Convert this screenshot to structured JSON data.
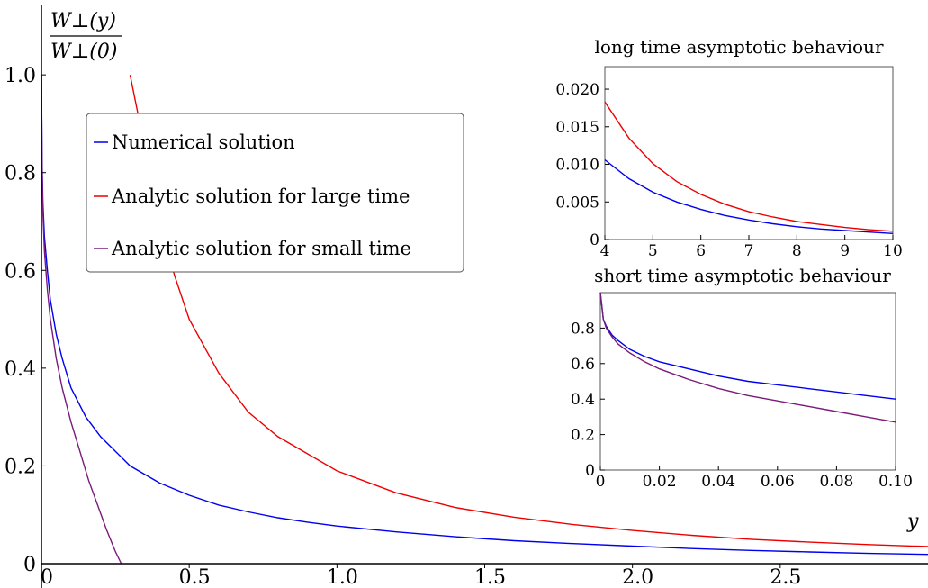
{
  "chart_data": [
    {
      "type": "line",
      "title": "",
      "xlabel": "y",
      "ylabel_numerator": "W⊥(y)",
      "ylabel_denominator": "W⊥(0)",
      "xlim": [
        0,
        3.0
      ],
      "ylim": [
        0,
        1.05
      ],
      "xticks": [
        0,
        0.5,
        1.0,
        1.5,
        2.0,
        2.5
      ],
      "xtick_labels": [
        "0",
        "0.5",
        "1.0",
        "1.5",
        "2.0",
        "2.5"
      ],
      "yticks": [
        0,
        0.2,
        0.4,
        0.6,
        0.8,
        1.0
      ],
      "ytick_labels": [
        "0",
        "0.2",
        "0.4",
        "0.6",
        "0.8",
        "1.0"
      ],
      "legend_position": "upper-left",
      "series": [
        {
          "name": "Numerical solution",
          "color": "#0000ee",
          "x": [
            0.0,
            0.002,
            0.005,
            0.01,
            0.02,
            0.03,
            0.05,
            0.07,
            0.1,
            0.15,
            0.2,
            0.25,
            0.3,
            0.4,
            0.5,
            0.6,
            0.7,
            0.8,
            0.9,
            1.0,
            1.2,
            1.4,
            1.6,
            1.8,
            2.0,
            2.2,
            2.4,
            2.6,
            2.8,
            3.0
          ],
          "y": [
            1.0,
            0.82,
            0.74,
            0.67,
            0.6,
            0.54,
            0.47,
            0.42,
            0.36,
            0.3,
            0.26,
            0.23,
            0.2,
            0.165,
            0.14,
            0.12,
            0.106,
            0.094,
            0.085,
            0.077,
            0.065,
            0.055,
            0.047,
            0.041,
            0.036,
            0.031,
            0.027,
            0.024,
            0.021,
            0.019
          ]
        },
        {
          "name": "Analytic solution for large time",
          "color": "#ee0000",
          "x": [
            0.3,
            0.35,
            0.4,
            0.45,
            0.5,
            0.6,
            0.7,
            0.8,
            1.0,
            1.2,
            1.4,
            1.6,
            1.8,
            2.0,
            2.2,
            2.4,
            2.6,
            2.8,
            3.0
          ],
          "y": [
            1.0,
            0.85,
            0.7,
            0.59,
            0.5,
            0.39,
            0.31,
            0.26,
            0.19,
            0.145,
            0.115,
            0.095,
            0.08,
            0.068,
            0.058,
            0.05,
            0.044,
            0.039,
            0.035
          ]
        },
        {
          "name": "Analytic solution for small time",
          "color": "#7a1a7a",
          "x": [
            0.0,
            0.002,
            0.005,
            0.01,
            0.02,
            0.03,
            0.05,
            0.07,
            0.1,
            0.13,
            0.16,
            0.19,
            0.22,
            0.25,
            0.27
          ],
          "y": [
            1.0,
            0.81,
            0.72,
            0.64,
            0.56,
            0.5,
            0.42,
            0.36,
            0.29,
            0.23,
            0.17,
            0.12,
            0.07,
            0.025,
            0.0
          ]
        }
      ]
    },
    {
      "type": "line",
      "title": "long time asymptotic behaviour",
      "xlim": [
        4,
        10
      ],
      "ylim": [
        0,
        0.023
      ],
      "xticks": [
        4,
        5,
        6,
        7,
        8,
        9,
        10
      ],
      "xtick_labels": [
        "4",
        "5",
        "6",
        "7",
        "8",
        "9",
        "10"
      ],
      "yticks": [
        0,
        0.005,
        0.01,
        0.015,
        0.02
      ],
      "ytick_labels": [
        "0",
        "0.005",
        "0.010",
        "0.015",
        "0.020"
      ],
      "series": [
        {
          "color": "#ee0000",
          "x": [
            4.0,
            4.5,
            5.0,
            5.5,
            6.0,
            6.5,
            7.0,
            7.5,
            8.0,
            8.5,
            9.0,
            9.5,
            10.0
          ],
          "y": [
            0.0183,
            0.0135,
            0.0101,
            0.0077,
            0.006,
            0.0047,
            0.0037,
            0.003,
            0.0024,
            0.002,
            0.0016,
            0.0013,
            0.0011
          ]
        },
        {
          "color": "#0000ee",
          "x": [
            4.0,
            4.5,
            5.0,
            5.5,
            6.0,
            6.5,
            7.0,
            7.5,
            8.0,
            8.5,
            9.0,
            9.5,
            10.0
          ],
          "y": [
            0.0106,
            0.0081,
            0.0063,
            0.005,
            0.004,
            0.0032,
            0.0026,
            0.0021,
            0.0017,
            0.0014,
            0.0012,
            0.001,
            0.0008
          ]
        }
      ]
    },
    {
      "type": "line",
      "title": "short time asymptotic behaviour",
      "xlim": [
        0,
        0.1
      ],
      "ylim": [
        0,
        1.0
      ],
      "xticks": [
        0,
        0.02,
        0.04,
        0.06,
        0.08,
        0.1
      ],
      "xtick_labels": [
        "0",
        "0.02",
        "0.04",
        "0.06",
        "0.08",
        "0.10"
      ],
      "yticks": [
        0,
        0.2,
        0.4,
        0.6,
        0.8
      ],
      "ytick_labels": [
        "0",
        "0.2",
        "0.4",
        "0.6",
        "0.8"
      ],
      "series": [
        {
          "color": "#0000ee",
          "x": [
            0.0,
            0.001,
            0.002,
            0.004,
            0.006,
            0.01,
            0.015,
            0.02,
            0.03,
            0.04,
            0.05,
            0.06,
            0.07,
            0.08,
            0.09,
            0.1
          ],
          "y": [
            1.0,
            0.85,
            0.81,
            0.76,
            0.73,
            0.68,
            0.64,
            0.61,
            0.57,
            0.53,
            0.5,
            0.48,
            0.46,
            0.44,
            0.42,
            0.4
          ]
        },
        {
          "color": "#7a1a7a",
          "x": [
            0.0,
            0.001,
            0.002,
            0.004,
            0.006,
            0.01,
            0.015,
            0.02,
            0.03,
            0.04,
            0.05,
            0.06,
            0.07,
            0.08,
            0.09,
            0.1
          ],
          "y": [
            1.0,
            0.85,
            0.8,
            0.75,
            0.71,
            0.66,
            0.61,
            0.57,
            0.51,
            0.46,
            0.42,
            0.39,
            0.36,
            0.33,
            0.3,
            0.27
          ]
        }
      ]
    }
  ]
}
